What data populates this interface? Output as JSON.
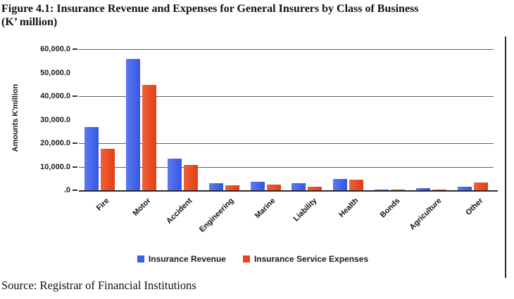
{
  "figure": {
    "title_line1": "Figure 4.1: Insurance Revenue and Expenses for General Insurers by Class of Business",
    "title_line2": "(K’ million)",
    "source": "Source: Registrar of Financial Institutions"
  },
  "chart_data": {
    "type": "bar",
    "title": "Insurance Revenue and Expenses for General Insurers by Class of Business (K' million)",
    "xlabel": "",
    "ylabel": "Amounts  K'million",
    "ylim": [
      0,
      60000
    ],
    "grid": true,
    "gridlines_at": [
      60000,
      40000,
      20000,
      10000
    ],
    "yticks": [
      {
        "value": 60000,
        "label": "60,000.0"
      },
      {
        "value": 50000,
        "label": "50,000.0"
      },
      {
        "value": 40000,
        "label": "40,000.0"
      },
      {
        "value": 30000,
        "label": "30,000.0"
      },
      {
        "value": 20000,
        "label": "20,000.0"
      },
      {
        "value": 10000,
        "label": "10,000.0"
      },
      {
        "value": 0,
        "label": ".0"
      }
    ],
    "categories": [
      "Fire",
      "Motor",
      "Accident",
      "Engineering",
      "Marine",
      "Liability",
      "Health",
      "Bonds",
      "Agriculture",
      "Other"
    ],
    "series": [
      {
        "name": "Insurance Revenue",
        "color": "#3d5ee6",
        "values": [
          26800,
          55900,
          13300,
          3100,
          3500,
          3000,
          4800,
          100,
          800,
          1500
        ]
      },
      {
        "name": "Insurance Service Expenses",
        "color": "#e8451d",
        "values": [
          17700,
          44800,
          10800,
          2100,
          2500,
          1400,
          4400,
          400,
          300,
          3400
        ]
      }
    ],
    "legend_position": "bottom"
  }
}
